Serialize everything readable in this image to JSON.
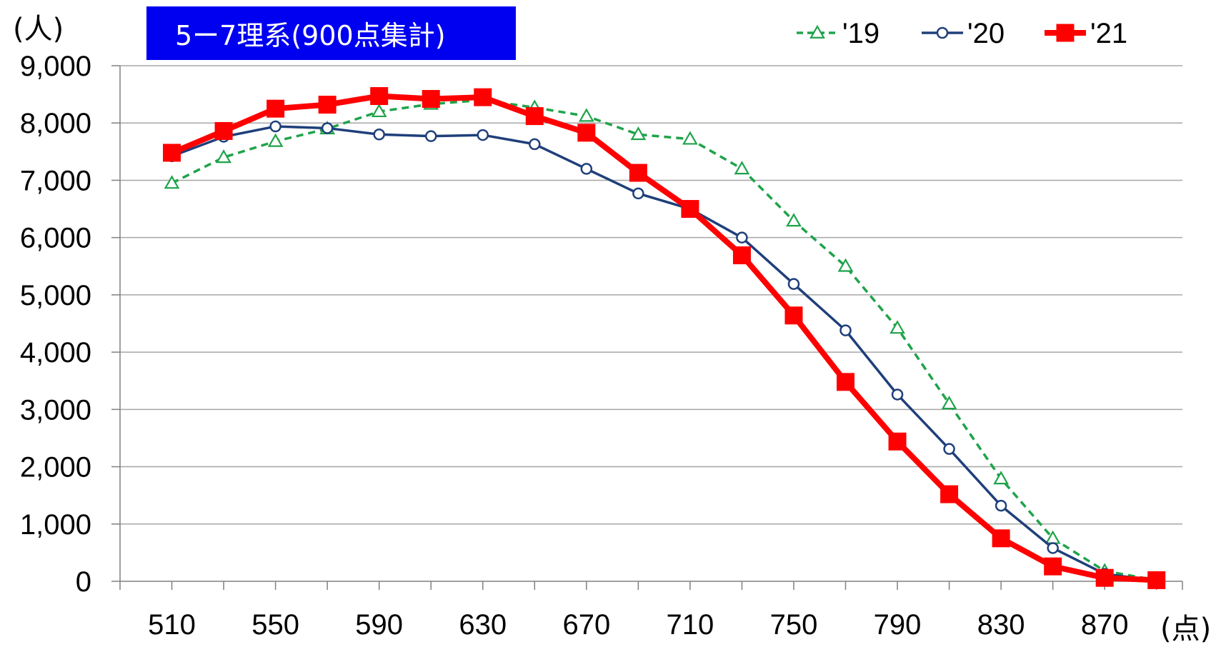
{
  "title": "5ー7理系(900点集計)",
  "y_unit": "(人)",
  "x_unit": "(点)",
  "colors": {
    "s19": "#1fa34a",
    "s20": "#1f3f7a",
    "s21": "#ff0000",
    "title_bg": "#0000f0"
  },
  "chart_data": {
    "type": "line",
    "title": "5ー7理系(900点集計)",
    "xlabel": "",
    "ylabel": "",
    "xlim": [
      490,
      900
    ],
    "ylim": [
      0,
      9000
    ],
    "x_ticks": [
      510,
      550,
      590,
      630,
      670,
      710,
      750,
      790,
      830,
      870
    ],
    "x_tick_labels": [
      "510",
      "550",
      "590",
      "630",
      "670",
      "710",
      "750",
      "790",
      "830",
      "870"
    ],
    "y_ticks": [
      0,
      1000,
      2000,
      3000,
      4000,
      5000,
      6000,
      7000,
      8000,
      9000
    ],
    "y_tick_labels": [
      "0",
      "1,000",
      "2,000",
      "3,000",
      "4,000",
      "5,000",
      "6,000",
      "7,000",
      "8,000",
      "9,000"
    ],
    "x": [
      510,
      530,
      550,
      570,
      590,
      610,
      630,
      650,
      670,
      690,
      710,
      730,
      750,
      770,
      790,
      810,
      830,
      850,
      870,
      890
    ],
    "legend_position": "top-right",
    "grid": "horizontal",
    "series": [
      {
        "name": "'19",
        "key": "s19",
        "style": "dashed-triangle",
        "values": [
          6950,
          7400,
          7680,
          7900,
          8200,
          8330,
          8400,
          8270,
          8120,
          7800,
          7720,
          7200,
          6290,
          5500,
          4420,
          3100,
          1790,
          750,
          180,
          20
        ]
      },
      {
        "name": "'20",
        "key": "s20",
        "style": "solid-circle",
        "values": [
          7420,
          7760,
          7940,
          7910,
          7800,
          7770,
          7790,
          7630,
          7200,
          6770,
          6500,
          6000,
          5190,
          4380,
          3260,
          2310,
          1320,
          580,
          130,
          10
        ]
      },
      {
        "name": "'21",
        "key": "s21",
        "style": "thick-square",
        "values": [
          7480,
          7860,
          8250,
          8320,
          8470,
          8420,
          8450,
          8120,
          7830,
          7130,
          6500,
          5690,
          4640,
          3480,
          2440,
          1520,
          750,
          260,
          60,
          20
        ]
      }
    ]
  }
}
